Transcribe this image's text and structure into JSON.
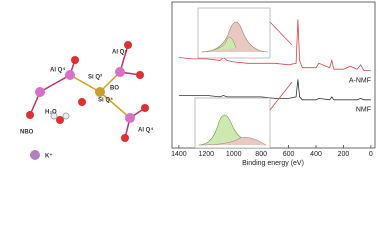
{
  "chart_data": {
    "type": "line",
    "x_label": "Binding energy (eV)",
    "x": [
      1400,
      1300,
      1200,
      1100,
      1075,
      1050,
      1000,
      900,
      800,
      700,
      600,
      545,
      532,
      520,
      500,
      400,
      380,
      300,
      285,
      270,
      200,
      150,
      100,
      75,
      50,
      0
    ],
    "series": [
      {
        "name": "A-NMF",
        "color": "#d9464a",
        "values": [
          62,
          61,
          61,
          60,
          62,
          60,
          59,
          58,
          58,
          58,
          57,
          58,
          88,
          60,
          55,
          55,
          58,
          55,
          60,
          54,
          54,
          56,
          54,
          57,
          53,
          53
        ]
      },
      {
        "name": "NMF",
        "color": "#333333",
        "values": [
          36,
          36,
          36,
          35,
          36,
          35,
          35,
          35,
          35,
          34,
          34,
          35,
          47,
          35,
          33,
          33,
          34,
          33,
          35,
          33,
          33,
          33,
          33,
          34,
          33,
          33
        ]
      }
    ],
    "xlim": [
      1450,
      -30
    ],
    "ylim": [
      0,
      100
    ],
    "xticks": [
      1400,
      1200,
      1000,
      800,
      600,
      400,
      200,
      0
    ]
  },
  "diagram": {
    "labels": [
      "Al Q⁴",
      "Al Q⁴",
      "Si Q³",
      "BO",
      "Si Q⁴",
      "NBO",
      "H₂O",
      "Al Q⁴",
      "K⁺"
    ]
  }
}
